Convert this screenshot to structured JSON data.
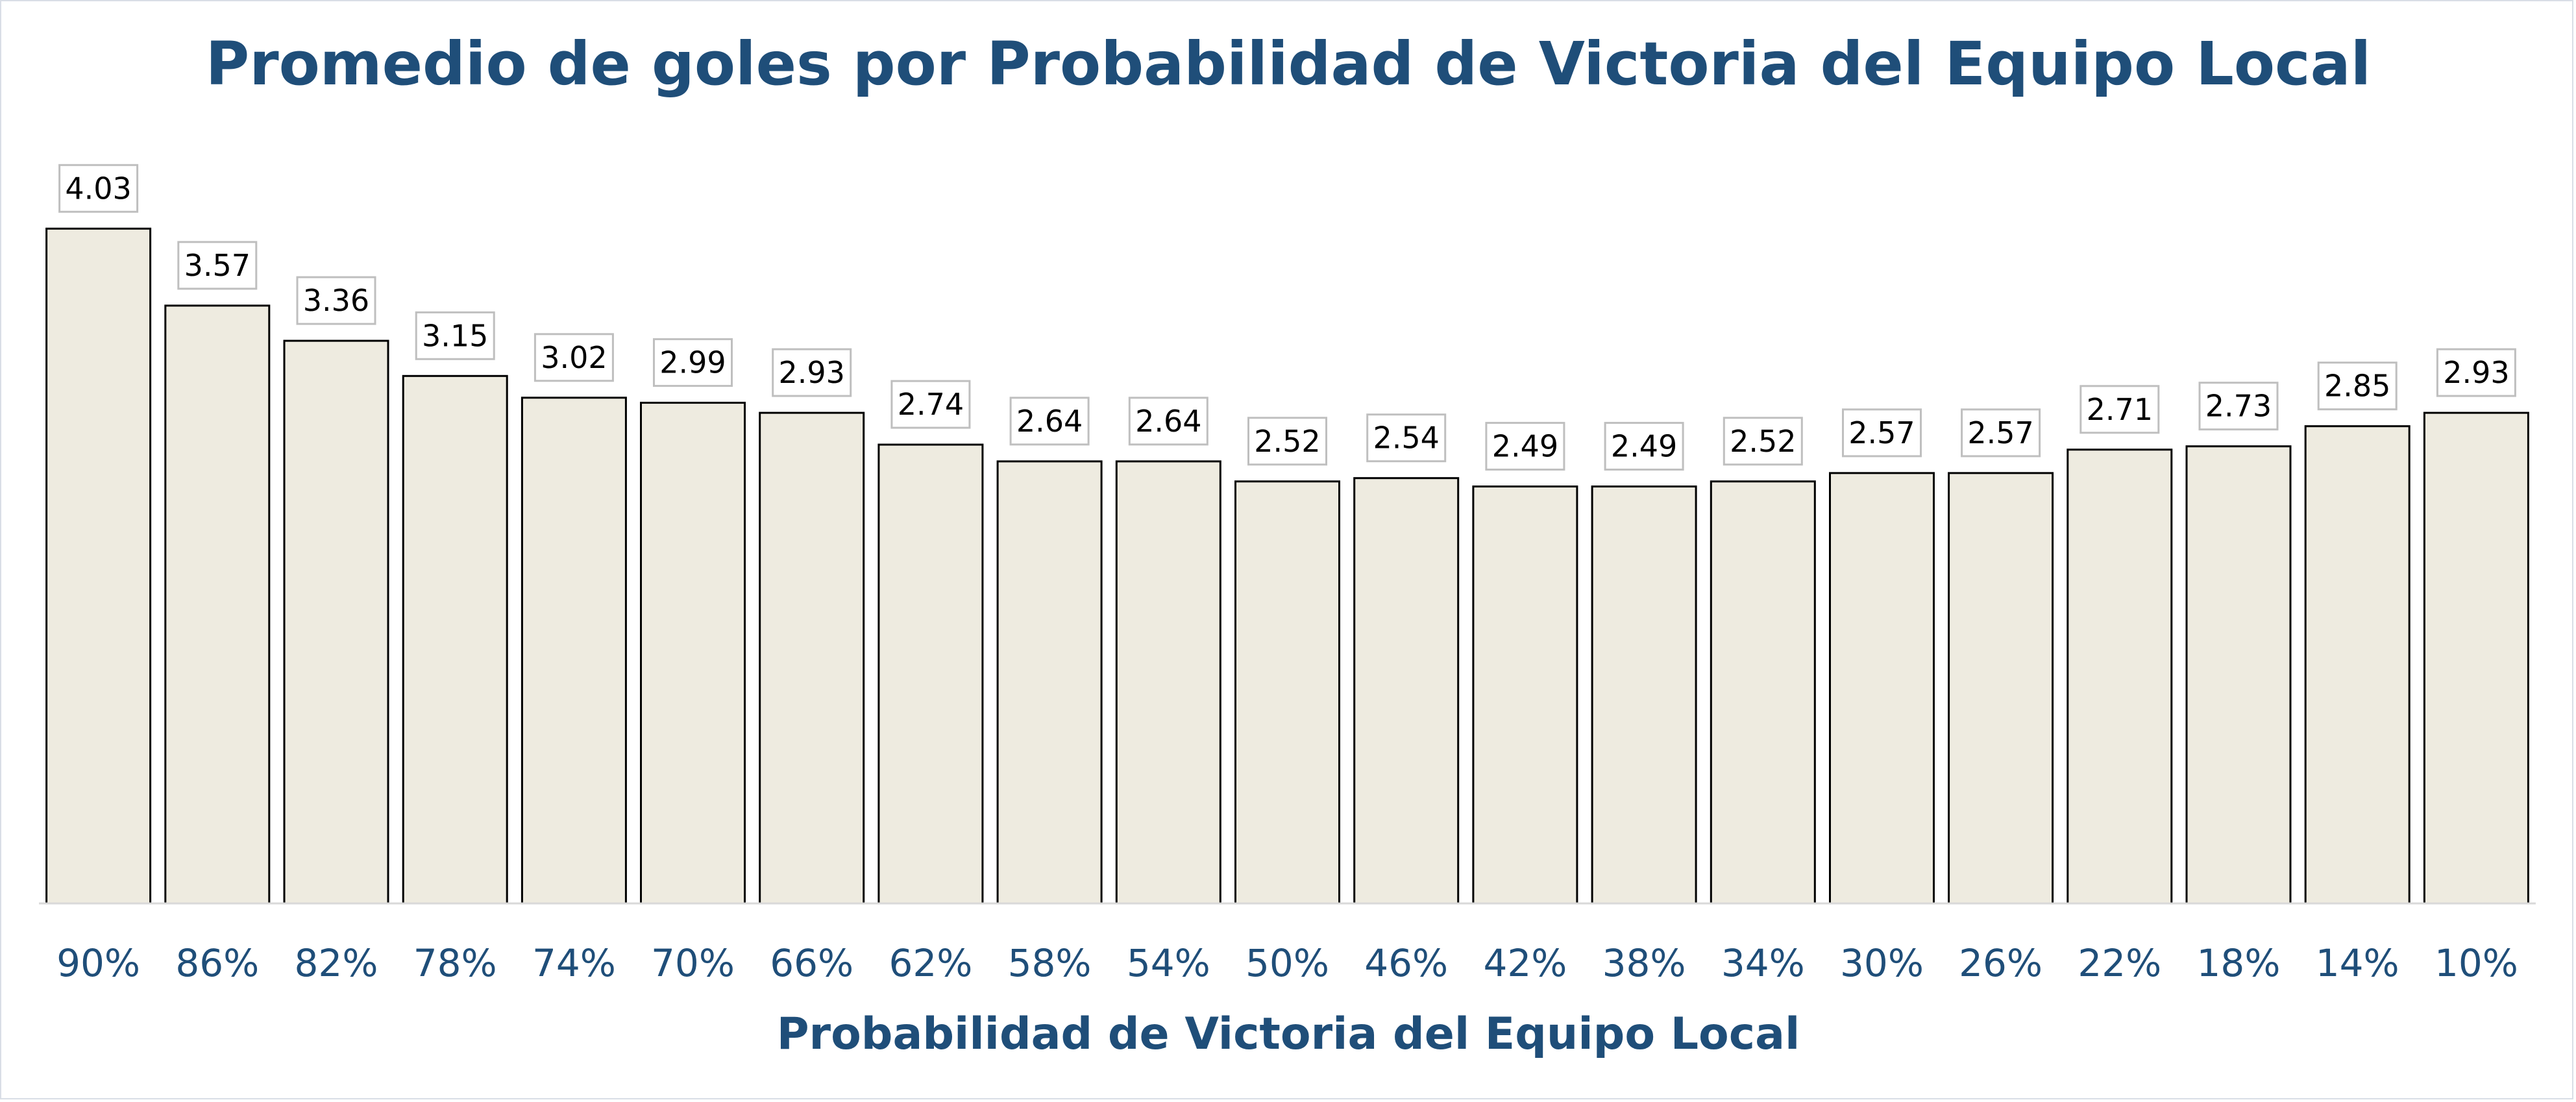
{
  "chart_data": {
    "type": "bar",
    "title": "Promedio de goles por Probabilidad de Victoria del Equipo Local",
    "xlabel": "Probabilidad de Victoria del Equipo Local",
    "ylabel": "",
    "categories": [
      "90%",
      "86%",
      "82%",
      "78%",
      "74%",
      "70%",
      "66%",
      "62%",
      "58%",
      "54%",
      "50%",
      "46%",
      "42%",
      "38%",
      "34%",
      "30%",
      "26%",
      "22%",
      "18%",
      "14%",
      "10%"
    ],
    "values": [
      4.03,
      3.57,
      3.36,
      3.15,
      3.02,
      2.99,
      2.93,
      2.74,
      2.64,
      2.64,
      2.52,
      2.54,
      2.49,
      2.49,
      2.52,
      2.57,
      2.57,
      2.71,
      2.73,
      2.85,
      2.93
    ],
    "data_labels": [
      "4.03",
      "3.57",
      "3.36",
      "3.15",
      "3.02",
      "2.99",
      "2.93",
      "2.74",
      "2.64",
      "2.64",
      "2.52",
      "2.54",
      "2.49",
      "2.49",
      "2.52",
      "2.57",
      "2.57",
      "2.71",
      "2.73",
      "2.85",
      "2.93"
    ],
    "ylim": [
      0,
      4.4
    ],
    "grid": false,
    "legend": "none",
    "colors": {
      "bar_fill": "#eeebe0",
      "bar_stroke": "#000000",
      "title": "#1f4e79",
      "axis_text": "#1f4e79",
      "label_box_stroke": "#bfbfbf"
    }
  }
}
